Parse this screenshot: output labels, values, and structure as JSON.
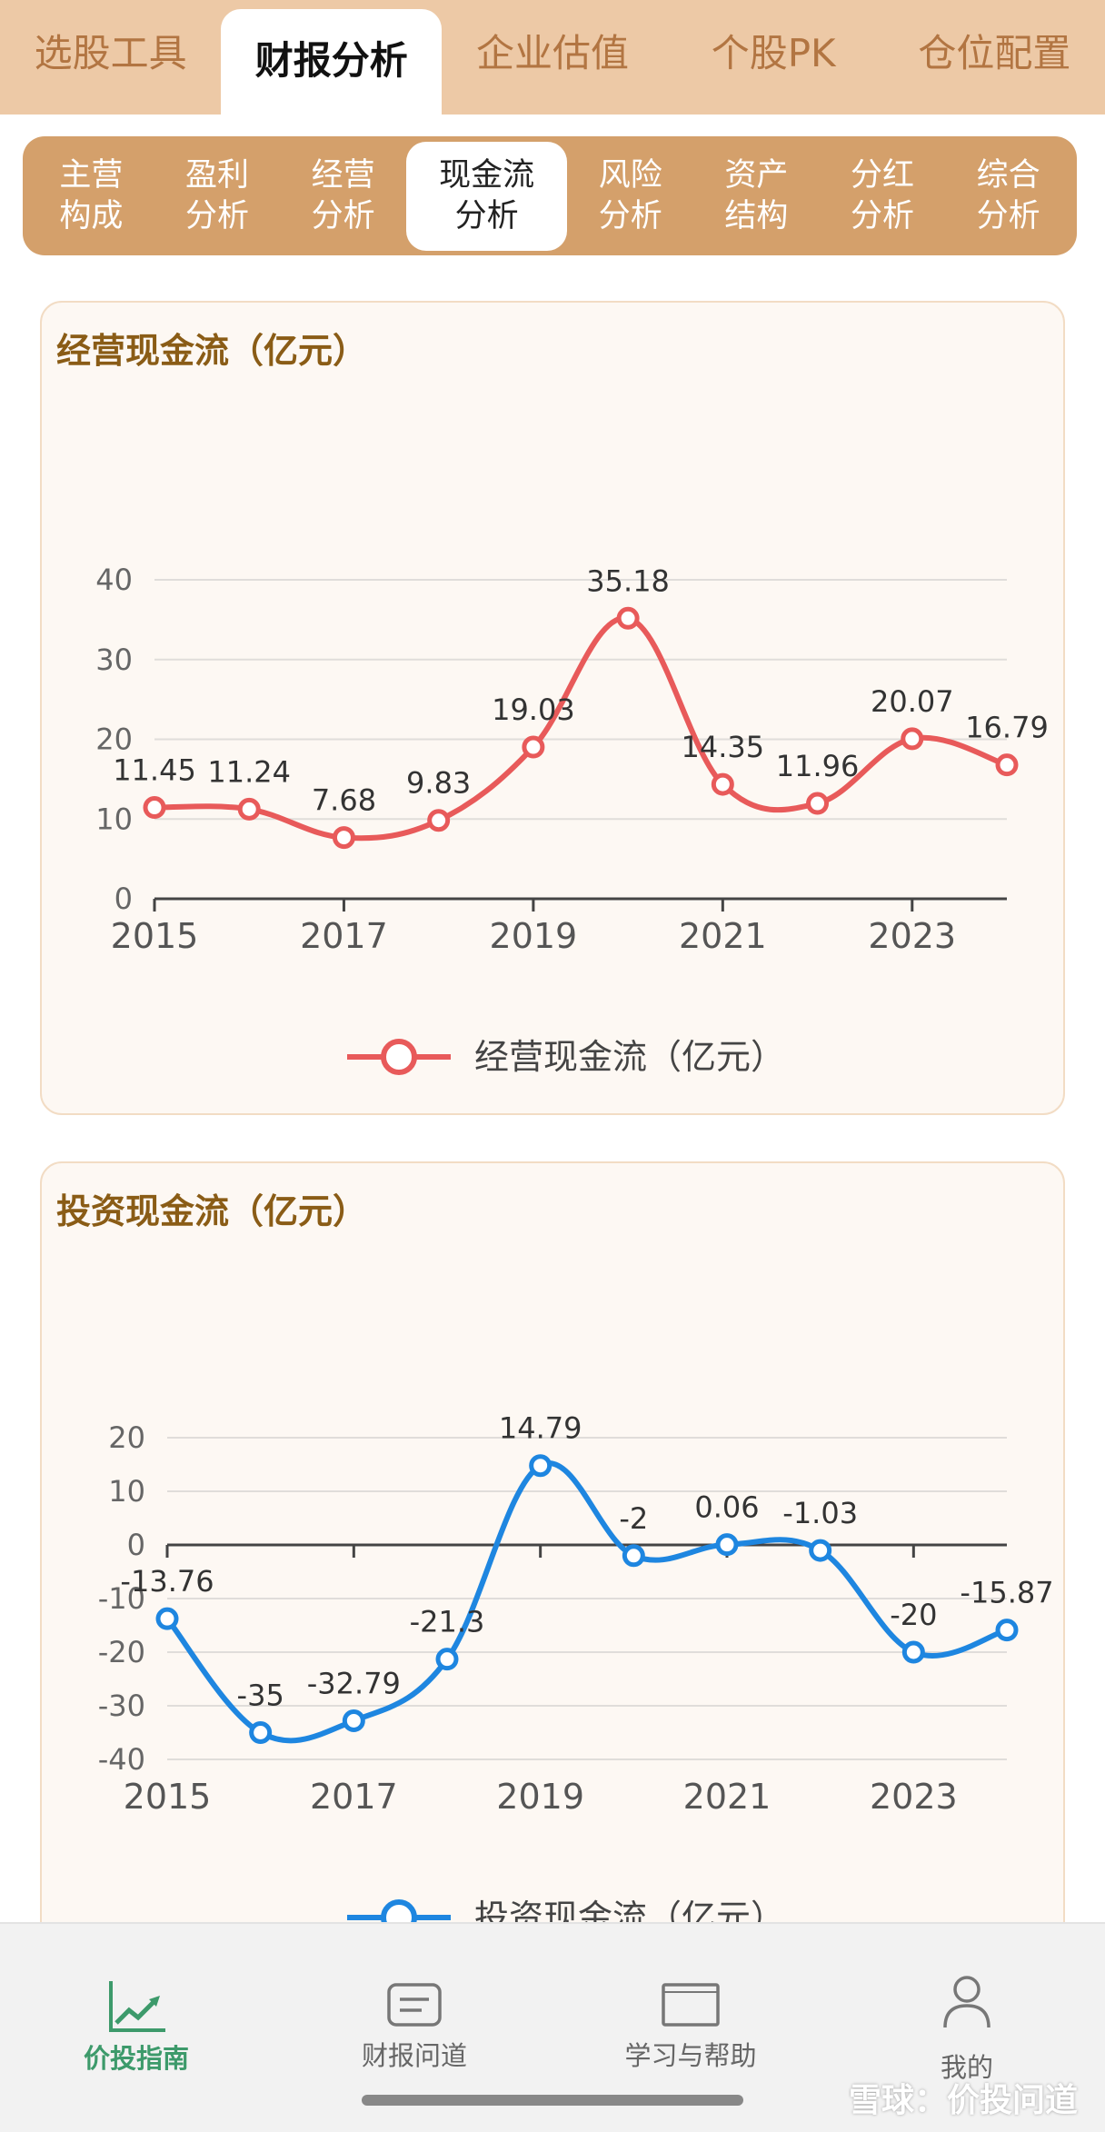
{
  "top_tabs": [
    "选股工具",
    "财报分析",
    "企业估值",
    "个股PK",
    "仓位配置"
  ],
  "top_tab_active": 1,
  "sub_tabs": [
    "主营\n构成",
    "盈利\n分析",
    "经营\n分析",
    "现金流\n分析",
    "风险\n分析",
    "资产\n结构",
    "分红\n分析",
    "综合\n分析"
  ],
  "sub_tab_active": 3,
  "chart_data": [
    {
      "type": "line",
      "title": "经营现金流（亿元）",
      "x": [
        2015,
        2016,
        2017,
        2018,
        2019,
        2020,
        2021,
        2022,
        2023,
        2024
      ],
      "xticks": [
        2015,
        2017,
        2019,
        2021,
        2023
      ],
      "ylim": [
        0,
        40
      ],
      "yticks": [
        0,
        10,
        20,
        30,
        40
      ],
      "grid": true,
      "legend": "bottom-center",
      "color": "#e85a5a",
      "series": [
        {
          "name": "经营现金流（亿元）",
          "values": [
            11.45,
            11.24,
            7.68,
            9.83,
            19.03,
            35.18,
            14.35,
            11.96,
            20.07,
            16.79
          ]
        }
      ]
    },
    {
      "type": "line",
      "title": "投资现金流（亿元）",
      "x": [
        2015,
        2016,
        2017,
        2018,
        2019,
        2020,
        2021,
        2022,
        2023,
        2024
      ],
      "xticks": [
        2015,
        2017,
        2019,
        2021,
        2023
      ],
      "ylim": [
        -40,
        20
      ],
      "yticks": [
        -40,
        -30,
        -20,
        -10,
        0,
        10,
        20
      ],
      "grid": true,
      "legend": "bottom-center",
      "color": "#1e86e0",
      "series": [
        {
          "name": "投资现金流（亿元）",
          "values": [
            -13.76,
            -35,
            -32.79,
            -21.3,
            14.79,
            -2,
            0.06,
            -1.03,
            -20,
            -15.87
          ]
        }
      ]
    }
  ],
  "bottom_nav": [
    {
      "label": "价投指南",
      "icon": "trend-chart-icon",
      "active": true
    },
    {
      "label": "财报问道",
      "icon": "message-icon",
      "active": false
    },
    {
      "label": "学习与帮助",
      "icon": "book-icon",
      "active": false
    },
    {
      "label": "我的",
      "icon": "user-icon",
      "active": false
    }
  ],
  "watermark": "雪球：价投问道"
}
